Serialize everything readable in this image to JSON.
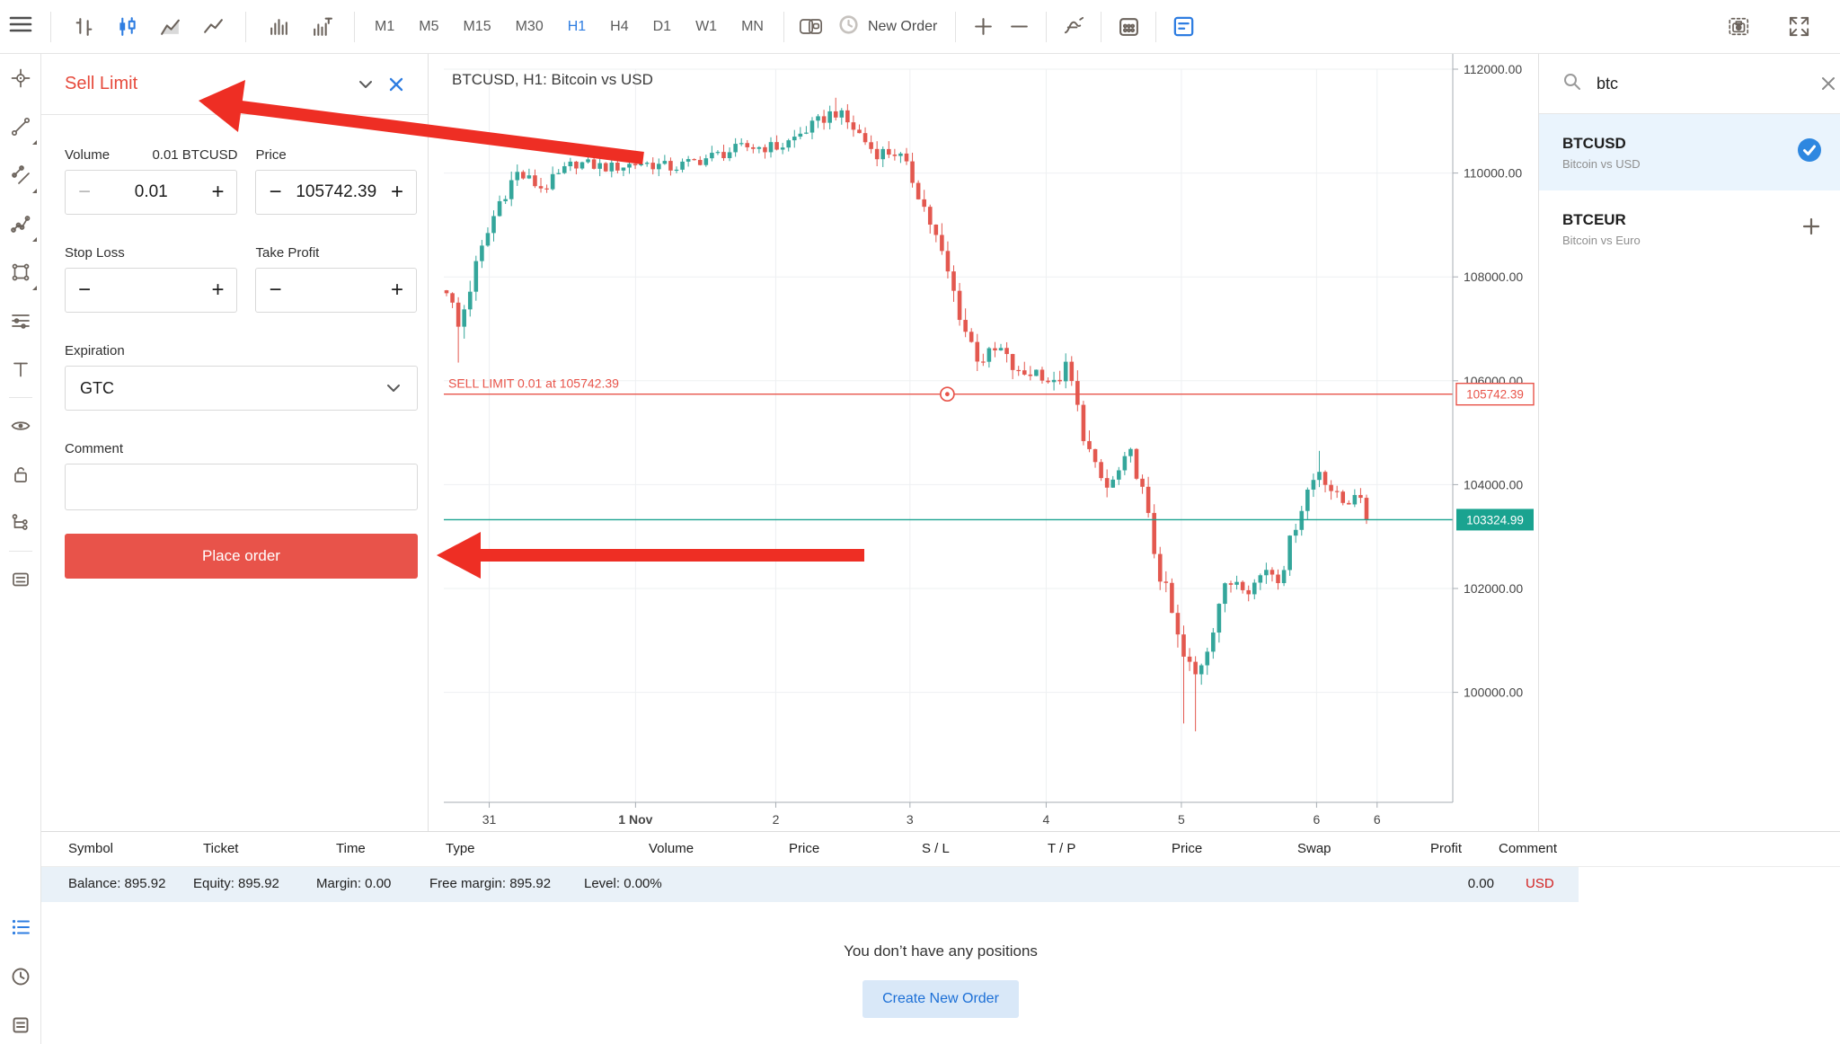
{
  "toolbar": {
    "new_order_label": "New Order",
    "timeframes": [
      "M1",
      "M5",
      "M15",
      "M30",
      "H1",
      "H4",
      "D1",
      "W1",
      "MN"
    ],
    "active_timeframe": "H1",
    "chart_types": [
      "bars-icon",
      "candles-icon",
      "area-icon",
      "line-icon"
    ],
    "active_chart_type": "candles-icon",
    "volume_modes": [
      "volume-icon",
      "tick-volume-icon"
    ]
  },
  "sidebar": {
    "tools": [
      {
        "name": "crosshair-icon",
        "submenu": false
      },
      {
        "name": "trendline-icon",
        "submenu": true
      },
      {
        "name": "channel-icon",
        "submenu": true
      },
      {
        "name": "polyline-icon",
        "submenu": true
      },
      {
        "name": "shape-icon",
        "submenu": true
      },
      {
        "name": "fib-levels-icon",
        "submenu": false
      },
      {
        "name": "text-icon",
        "submenu": false
      },
      {
        "name": "eye-icon",
        "submenu": false,
        "group_start": true
      },
      {
        "name": "unlock-icon",
        "submenu": false
      },
      {
        "name": "object-tree-icon",
        "submenu": false
      },
      {
        "name": "delete-objects-icon",
        "submenu": false,
        "group_start": true
      }
    ],
    "bottom": [
      {
        "name": "trade-list-icon",
        "active": true
      },
      {
        "name": "history-icon",
        "active": false
      },
      {
        "name": "journal-icon",
        "active": false
      }
    ]
  },
  "order_panel": {
    "title": "Sell Limit",
    "volume_label": "Volume",
    "volume_hint": "0.01 BTCUSD",
    "volume_value": "0.01",
    "price_label": "Price",
    "price_value": "105742.39",
    "stop_loss_label": "Stop Loss",
    "take_profit_label": "Take Profit",
    "expiration_label": "Expiration",
    "expiration_value": "GTC",
    "comment_label": "Comment",
    "comment_value": "",
    "place_order_label": "Place order"
  },
  "watchlist": {
    "search_value": "btc",
    "symbols": [
      {
        "name": "BTCUSD",
        "description": "Bitcoin vs USD",
        "selected": true
      },
      {
        "name": "BTCEUR",
        "description": "Bitcoin vs Euro",
        "selected": false
      }
    ]
  },
  "positions": {
    "columns": [
      "Symbol",
      "Ticket",
      "Time",
      "Type",
      "Volume",
      "Price",
      "S / L",
      "T / P",
      "Price",
      "Swap",
      "Profit",
      "Comment"
    ],
    "summary": {
      "balance": "Balance: 895.92",
      "equity": "Equity: 895.92",
      "margin": "Margin: 0.00",
      "free_margin": "Free margin: 895.92",
      "level": "Level: 0.00%",
      "profit": "0.00",
      "currency": "USD"
    },
    "empty_text": "You don’t have any positions",
    "create_order_label": "Create New Order"
  },
  "chart_data": {
    "type": "candlestick",
    "title": "BTCUSD, H1: Bitcoin vs USD",
    "symbol": "BTCUSD",
    "timeframe": "H1",
    "y_ticks": [
      {
        "price": 112000,
        "label": "112000.00"
      },
      {
        "price": 110000,
        "label": "110000.00"
      },
      {
        "price": 108000,
        "label": "108000.00"
      },
      {
        "price": 106000,
        "label": "106000.00"
      },
      {
        "price": 104000,
        "label": "104000.00"
      },
      {
        "price": 102000,
        "label": "102000.00"
      },
      {
        "price": 100000,
        "label": "100000.00"
      }
    ],
    "x_ticks": [
      {
        "label": "31",
        "f": 0.045,
        "bold": false
      },
      {
        "label": "1 Nov",
        "f": 0.19,
        "bold": true
      },
      {
        "label": "2",
        "f": 0.329,
        "bold": false
      },
      {
        "label": "3",
        "f": 0.462,
        "bold": false
      },
      {
        "label": "4",
        "f": 0.597,
        "bold": false
      },
      {
        "label": "5",
        "f": 0.731,
        "bold": false
      },
      {
        "label": "6",
        "f": 0.865,
        "bold": false
      },
      {
        "label": "6",
        "f": 0.925,
        "bold": false
      }
    ],
    "bar_count": 157,
    "last_close": 103324.99,
    "sell_limit": {
      "price": 105742.39,
      "label": "SELL LIMIT 0.01 at 105742.39",
      "badge": "105742.39",
      "marker_frac": 0.499
    },
    "current": {
      "price": 103324.99,
      "badge": "103324.99"
    },
    "colors": {
      "up": "#34a69b",
      "down": "#e3584f",
      "grid": "#eef0f2",
      "axis": "#a7adb3",
      "sell": "#e8544a",
      "current": "#1aa390",
      "text": "#464646"
    },
    "anchors": [
      {
        "t": 0.0,
        "p": 107800,
        "v": 400
      },
      {
        "t": 0.013,
        "p": 107000,
        "v": 520,
        "lo": 106350
      },
      {
        "t": 0.032,
        "p": 108200,
        "v": 350
      },
      {
        "t": 0.056,
        "p": 109400,
        "v": 350
      },
      {
        "t": 0.076,
        "p": 110000,
        "v": 320
      },
      {
        "t": 0.105,
        "p": 109700,
        "v": 300
      },
      {
        "t": 0.139,
        "p": 110200,
        "v": 260
      },
      {
        "t": 0.178,
        "p": 110100,
        "v": 260
      },
      {
        "t": 0.212,
        "p": 110200,
        "v": 260
      },
      {
        "t": 0.246,
        "p": 110100,
        "v": 260
      },
      {
        "t": 0.285,
        "p": 110300,
        "v": 260
      },
      {
        "t": 0.324,
        "p": 110500,
        "v": 260
      },
      {
        "t": 0.363,
        "p": 110500,
        "v": 260
      },
      {
        "t": 0.397,
        "p": 110900,
        "v": 260
      },
      {
        "t": 0.422,
        "p": 111200,
        "v": 300,
        "hi": 111450
      },
      {
        "t": 0.446,
        "p": 110800,
        "v": 300
      },
      {
        "t": 0.465,
        "p": 110400,
        "v": 300
      },
      {
        "t": 0.49,
        "p": 110400,
        "v": 300
      },
      {
        "t": 0.509,
        "p": 109800,
        "v": 350
      },
      {
        "t": 0.529,
        "p": 108900,
        "v": 420
      },
      {
        "t": 0.546,
        "p": 108000,
        "v": 420
      },
      {
        "t": 0.563,
        "p": 107000,
        "v": 420
      },
      {
        "t": 0.579,
        "p": 106400,
        "v": 360
      },
      {
        "t": 0.602,
        "p": 106600,
        "v": 320
      },
      {
        "t": 0.621,
        "p": 106100,
        "v": 320
      },
      {
        "t": 0.644,
        "p": 106200,
        "v": 320
      },
      {
        "t": 0.66,
        "p": 105900,
        "v": 320
      },
      {
        "t": 0.675,
        "p": 106300,
        "v": 320
      },
      {
        "t": 0.689,
        "p": 105200,
        "v": 420
      },
      {
        "t": 0.704,
        "p": 104300,
        "v": 420
      },
      {
        "t": 0.719,
        "p": 103900,
        "v": 360
      },
      {
        "t": 0.733,
        "p": 104300,
        "v": 360
      },
      {
        "t": 0.745,
        "p": 104600,
        "v": 320
      },
      {
        "t": 0.757,
        "p": 103800,
        "v": 420
      },
      {
        "t": 0.772,
        "p": 102500,
        "v": 470
      },
      {
        "t": 0.787,
        "p": 101600,
        "v": 470
      },
      {
        "t": 0.799,
        "p": 100700,
        "v": 520,
        "lo": 99400
      },
      {
        "t": 0.814,
        "p": 100300,
        "v": 520,
        "lo": 99250
      },
      {
        "t": 0.829,
        "p": 101000,
        "v": 420
      },
      {
        "t": 0.842,
        "p": 101900,
        "v": 360
      },
      {
        "t": 0.858,
        "p": 102200,
        "v": 320
      },
      {
        "t": 0.874,
        "p": 102000,
        "v": 320
      },
      {
        "t": 0.891,
        "p": 102400,
        "v": 320
      },
      {
        "t": 0.906,
        "p": 102200,
        "v": 320
      },
      {
        "t": 0.92,
        "p": 103100,
        "v": 320
      },
      {
        "t": 0.936,
        "p": 103900,
        "v": 320
      },
      {
        "t": 0.949,
        "p": 104300,
        "v": 320,
        "hi": 104650
      },
      {
        "t": 0.965,
        "p": 103800,
        "v": 300
      },
      {
        "t": 0.978,
        "p": 103600,
        "v": 260
      },
      {
        "t": 0.988,
        "p": 103900,
        "v": 260
      },
      {
        "t": 1.0,
        "p": 103330,
        "v": 260
      }
    ]
  }
}
